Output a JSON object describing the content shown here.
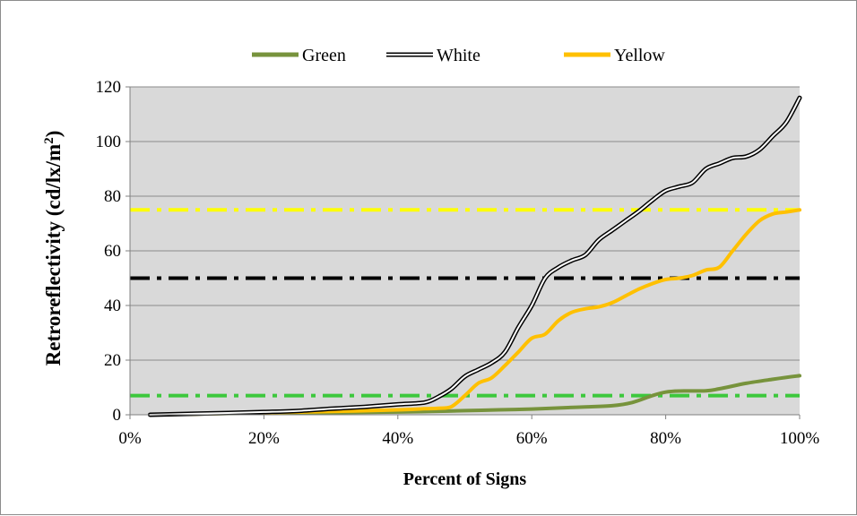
{
  "chart_data": {
    "type": "line",
    "xlabel": "Percent of Signs",
    "ylabel": "Retroreflectivity (cd/lx/m²)",
    "xlim": [
      0,
      100
    ],
    "ylim": [
      0,
      120
    ],
    "x_ticks": [
      0,
      20,
      40,
      60,
      80,
      100
    ],
    "x_tick_labels": [
      "0%",
      "20%",
      "40%",
      "60%",
      "80%",
      "100%"
    ],
    "y_ticks": [
      0,
      20,
      40,
      60,
      80,
      100,
      120
    ],
    "y_tick_labels": [
      "0",
      "20",
      "40",
      "60",
      "80",
      "100",
      "120"
    ],
    "grid": "horizontal",
    "plot_background": "#d9d9d9",
    "legend_position": "top",
    "series": [
      {
        "name": "Green",
        "color": "#77933c",
        "style": "solid",
        "x": [
          3,
          10,
          20,
          30,
          40,
          45,
          50,
          55,
          60,
          65,
          68,
          72,
          75,
          78,
          80,
          82,
          86,
          88,
          92,
          96,
          100
        ],
        "y": [
          0,
          0.3,
          0.6,
          0.8,
          1.0,
          1.2,
          1.5,
          1.8,
          2.1,
          2.6,
          2.9,
          3.3,
          4.5,
          7.0,
          8.3,
          8.7,
          8.8,
          9.5,
          11.5,
          13.0,
          14.3
        ]
      },
      {
        "name": "White",
        "color": "#000000",
        "style": "double",
        "x": [
          3,
          10,
          20,
          25,
          30,
          35,
          40,
          44,
          46,
          48,
          50,
          52,
          54,
          56,
          58,
          60,
          62,
          64,
          66,
          68,
          70,
          72,
          74,
          76,
          78,
          80,
          82,
          84,
          86,
          88,
          90,
          92,
          94,
          96,
          98,
          100
        ],
        "y": [
          0,
          0.4,
          1.0,
          1.4,
          2.2,
          2.9,
          3.8,
          4.5,
          6.5,
          9.5,
          14.0,
          16.5,
          19.0,
          23.0,
          32.0,
          40.0,
          50.0,
          54.0,
          56.5,
          58.5,
          64.0,
          67.5,
          71.0,
          74.5,
          78.5,
          82.0,
          83.5,
          85.0,
          90.0,
          92.0,
          94.0,
          94.5,
          97.0,
          102.0,
          107.0,
          116.0
        ]
      },
      {
        "name": "Yellow",
        "color": "#ffc000",
        "style": "solid",
        "x": [
          3,
          10,
          20,
          30,
          40,
          44,
          46,
          48,
          50,
          52,
          54,
          56,
          58,
          60,
          62,
          64,
          66,
          68,
          70,
          72,
          74,
          76,
          78,
          80,
          82,
          84,
          86,
          88,
          90,
          92,
          94,
          96,
          98,
          100
        ],
        "y": [
          0,
          0.3,
          0.8,
          1.2,
          1.8,
          2.2,
          2.4,
          3.0,
          7.0,
          11.5,
          13.5,
          18.0,
          23.0,
          28.0,
          29.5,
          34.5,
          37.5,
          38.8,
          39.5,
          41.0,
          43.5,
          46.0,
          48.0,
          49.5,
          50.0,
          51.0,
          53.0,
          54.0,
          60.0,
          66.0,
          71.0,
          73.5,
          74.2,
          75.0
        ]
      }
    ],
    "reference_lines": [
      {
        "y": 75,
        "color": "#ffff00",
        "style": "dash-dot"
      },
      {
        "y": 50,
        "color": "#000000",
        "style": "dash-dot"
      },
      {
        "y": 7,
        "color": "#3cc83c",
        "style": "dash-dot"
      }
    ]
  }
}
